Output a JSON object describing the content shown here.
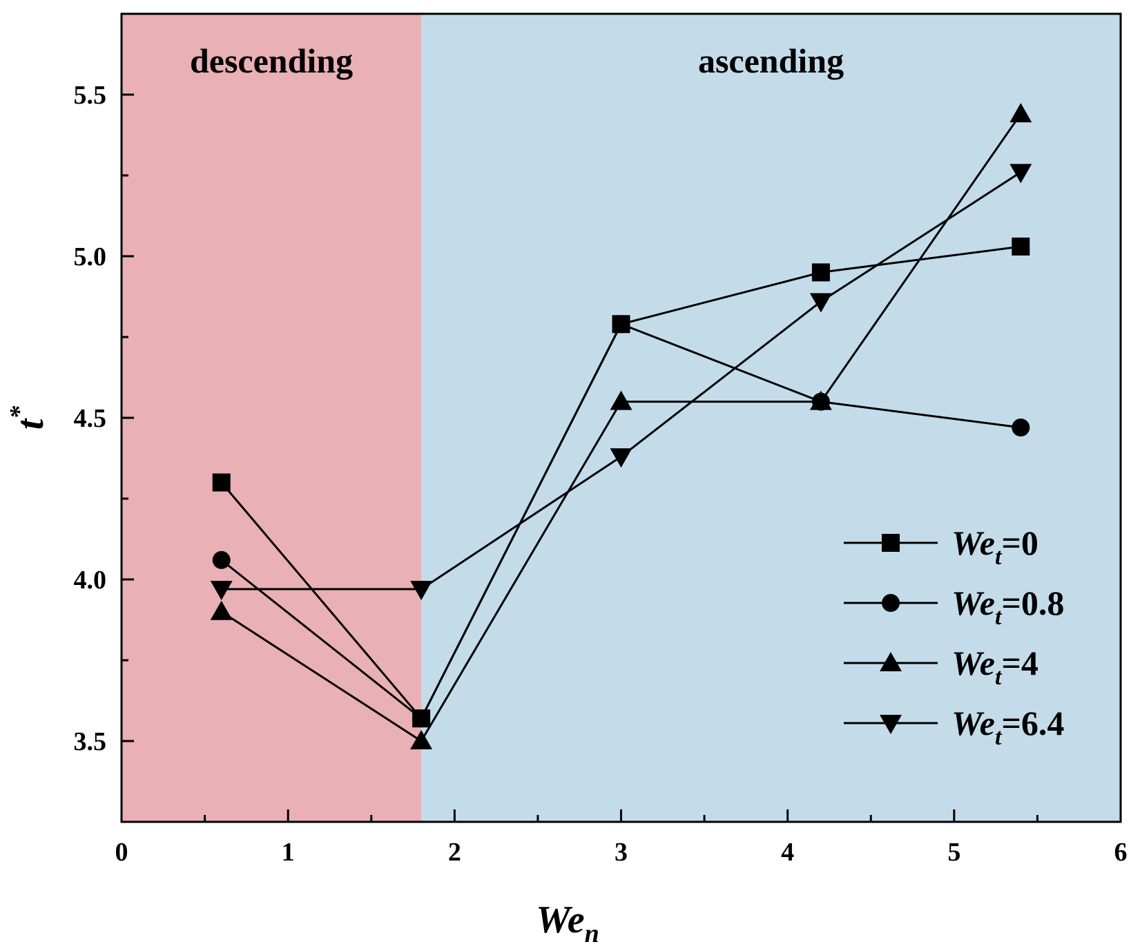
{
  "chart_data": {
    "type": "line",
    "title": "",
    "xlabel": {
      "base": "We",
      "sub": "n"
    },
    "ylabel": {
      "base": "t",
      "sup": "*"
    },
    "xlim": [
      0,
      6
    ],
    "ylim": [
      3.25,
      5.75
    ],
    "xticks": [
      0,
      1,
      2,
      3,
      4,
      5,
      6
    ],
    "xtick_labels": [
      "0",
      "1",
      "2",
      "3",
      "4",
      "5",
      "6"
    ],
    "xminor": [
      0.5,
      1.5,
      2.5,
      3.5,
      4.5,
      5.5
    ],
    "yticks": [
      3.5,
      4.0,
      4.5,
      5.0,
      5.5
    ],
    "ytick_labels": [
      "3.5",
      "4.0",
      "4.5",
      "5.0",
      "5.5"
    ],
    "yminor": [
      3.75,
      4.25,
      4.75,
      5.25
    ],
    "regions": [
      {
        "name": "descending",
        "label": "descending",
        "x0": 0,
        "x1": 1.8,
        "color": "#e9b0b6"
      },
      {
        "name": "ascending",
        "label": "ascending",
        "x0": 1.8,
        "x1": 6,
        "color": "#c4dcea"
      }
    ],
    "x": [
      0.6,
      1.8,
      3.0,
      4.2,
      5.4
    ],
    "series": [
      {
        "name": "We_t=0",
        "legend_base": "We",
        "legend_sub": "t",
        "legend_value": "=0",
        "marker": "square",
        "values": [
          4.3,
          3.57,
          4.79,
          4.95,
          5.03
        ]
      },
      {
        "name": "We_t=0.8",
        "legend_base": "We",
        "legend_sub": "t",
        "legend_value": "=0.8",
        "marker": "circle",
        "values": [
          4.06,
          3.57,
          4.79,
          4.55,
          4.47
        ]
      },
      {
        "name": "We_t=4",
        "legend_base": "We",
        "legend_sub": "t",
        "legend_value": "=4",
        "marker": "triangle-up",
        "values": [
          3.9,
          3.5,
          4.55,
          4.55,
          5.44
        ]
      },
      {
        "name": "We_t=6.4",
        "legend_base": "We",
        "legend_sub": "t",
        "legend_value": "=6.4",
        "marker": "triangle-down",
        "values": [
          3.97,
          3.97,
          4.38,
          4.86,
          5.26
        ]
      }
    ],
    "legend_position": "bottom-right",
    "line_color": "#000000",
    "grid": false
  }
}
